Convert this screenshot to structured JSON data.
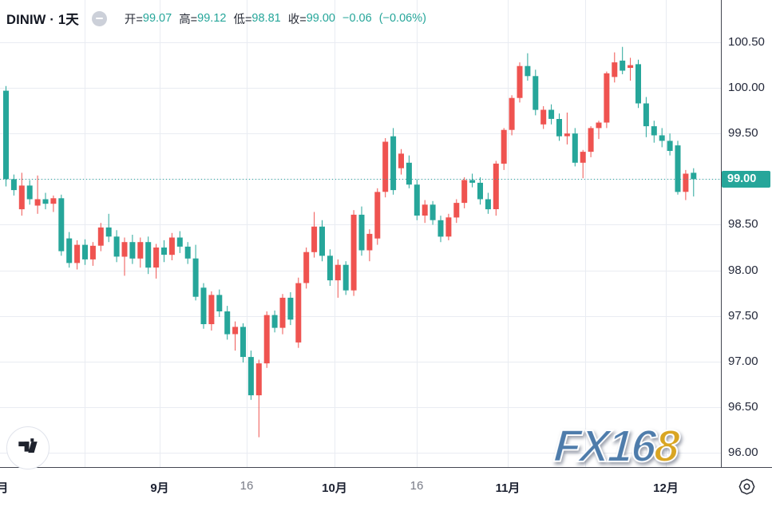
{
  "header": {
    "symbol": "DINIW",
    "separator": "·",
    "interval": "1天",
    "title": "DINIW · 1天",
    "ohlc": {
      "o_label": "开=",
      "o": "99.07",
      "h_label": "高=",
      "h": "99.12",
      "l_label": "低=",
      "l": "98.81",
      "c_label": "收=",
      "c": "99.00",
      "change": "−0.06",
      "change_pct": "(−0.06%)"
    }
  },
  "price_axis": {
    "labels": [
      "100.50",
      "100.00",
      "99.50",
      "99.00",
      "98.50",
      "98.00",
      "97.50",
      "97.00",
      "96.50",
      "96.00"
    ],
    "current_price": "99.00"
  },
  "time_axis": {
    "ticks": [
      {
        "x": 3,
        "label": "月",
        "bold": true
      },
      {
        "x": 200,
        "label": "9月",
        "bold": true
      },
      {
        "x": 309,
        "label": "16",
        "bold": false
      },
      {
        "x": 419,
        "label": "10月",
        "bold": true
      },
      {
        "x": 522,
        "label": "16",
        "bold": false
      },
      {
        "x": 636,
        "label": "11月",
        "bold": true
      },
      {
        "x": 834,
        "label": "12月",
        "bold": true
      }
    ]
  },
  "watermark": {
    "blue_part": "FX16",
    "gold_part": "8"
  },
  "colors": {
    "up": "#ef5350",
    "down": "#26a69a",
    "grid": "#e9ecf2",
    "axis_line": "#434651",
    "text_dark": "#131722",
    "text_muted": "#787b86",
    "badge_bg": "#26a69a",
    "badge_text": "#ffffff",
    "current_line": "#26a69a",
    "logo_blue": "#4e7cab",
    "logo_gold": "#d9a522"
  },
  "chart_data": {
    "type": "candlestick",
    "title": "DINIW daily (US Dollar Index), Chinese color convention: red = up day, green = down day",
    "ylim": [
      95.843,
      100.964
    ],
    "y_gridlines": [
      100.5,
      100.0,
      99.5,
      99.0,
      98.5,
      98.0,
      97.5,
      97.0,
      96.5,
      96.0
    ],
    "x_gridlines": [
      106,
      200,
      309,
      419,
      522,
      636,
      733,
      834
    ],
    "current_price": 99.0,
    "first_candle_x": 7.5,
    "candle_spacing": 9.9,
    "body_width": 7,
    "candles_format": [
      "open",
      "high",
      "low",
      "close"
    ],
    "candles": [
      [
        99.97,
        100.02,
        98.92,
        99.0
      ],
      [
        99.0,
        99.05,
        98.82,
        98.88
      ],
      [
        98.67,
        99.07,
        98.6,
        98.93
      ],
      [
        98.93,
        98.99,
        98.72,
        98.78
      ],
      [
        98.71,
        99.04,
        98.62,
        98.78
      ],
      [
        98.78,
        98.85,
        98.67,
        98.73
      ],
      [
        98.73,
        98.82,
        98.64,
        98.79
      ],
      [
        98.79,
        98.83,
        98.16,
        98.21
      ],
      [
        98.35,
        98.42,
        98.03,
        98.08
      ],
      [
        98.08,
        98.33,
        98.01,
        98.28
      ],
      [
        98.28,
        98.34,
        98.06,
        98.12
      ],
      [
        98.12,
        98.31,
        98.05,
        98.27
      ],
      [
        98.27,
        98.52,
        98.21,
        98.47
      ],
      [
        98.47,
        98.62,
        98.31,
        98.37
      ],
      [
        98.37,
        98.44,
        98.09,
        98.15
      ],
      [
        98.15,
        98.36,
        97.94,
        98.31
      ],
      [
        98.31,
        98.39,
        98.07,
        98.13
      ],
      [
        98.13,
        98.36,
        98.03,
        98.31
      ],
      [
        98.31,
        98.37,
        97.96,
        98.03
      ],
      [
        98.03,
        98.29,
        97.91,
        98.25
      ],
      [
        98.25,
        98.33,
        98.09,
        98.17
      ],
      [
        98.17,
        98.41,
        98.11,
        98.36
      ],
      [
        98.36,
        98.43,
        98.19,
        98.26
      ],
      [
        98.26,
        98.31,
        98.07,
        98.13
      ],
      [
        98.13,
        98.28,
        97.67,
        97.71
      ],
      [
        97.81,
        97.86,
        97.36,
        97.41
      ],
      [
        97.41,
        97.77,
        97.34,
        97.73
      ],
      [
        97.73,
        97.79,
        97.49,
        97.55
      ],
      [
        97.55,
        97.61,
        97.24,
        97.3
      ],
      [
        97.3,
        97.44,
        97.12,
        97.38
      ],
      [
        97.38,
        97.42,
        96.99,
        97.05
      ],
      [
        97.05,
        97.12,
        96.58,
        96.63
      ],
      [
        96.63,
        97.02,
        96.17,
        96.98
      ],
      [
        96.98,
        97.55,
        96.93,
        97.51
      ],
      [
        97.51,
        97.56,
        97.32,
        97.37
      ],
      [
        97.37,
        97.74,
        97.3,
        97.7
      ],
      [
        97.7,
        97.76,
        97.4,
        97.46
      ],
      [
        97.21,
        97.92,
        97.15,
        97.86
      ],
      [
        97.86,
        98.25,
        97.8,
        98.2
      ],
      [
        98.2,
        98.64,
        98.14,
        98.48
      ],
      [
        98.48,
        98.55,
        98.1,
        98.16
      ],
      [
        98.16,
        98.23,
        97.83,
        97.89
      ],
      [
        97.89,
        98.12,
        97.7,
        98.06
      ],
      [
        98.06,
        98.1,
        97.73,
        97.78
      ],
      [
        97.78,
        98.66,
        97.72,
        98.61
      ],
      [
        98.61,
        98.7,
        98.16,
        98.22
      ],
      [
        98.22,
        98.45,
        98.1,
        98.4
      ],
      [
        98.35,
        98.9,
        98.28,
        98.86
      ],
      [
        98.86,
        99.45,
        98.8,
        99.41
      ],
      [
        99.47,
        99.56,
        98.83,
        98.88
      ],
      [
        99.12,
        99.33,
        99.05,
        99.28
      ],
      [
        99.18,
        99.26,
        98.9,
        98.94
      ],
      [
        98.94,
        99.0,
        98.55,
        98.6
      ],
      [
        98.6,
        98.77,
        98.52,
        98.72
      ],
      [
        98.72,
        98.76,
        98.5,
        98.55
      ],
      [
        98.55,
        98.6,
        98.31,
        98.37
      ],
      [
        98.37,
        98.62,
        98.33,
        98.58
      ],
      [
        98.58,
        98.78,
        98.52,
        98.74
      ],
      [
        98.74,
        99.02,
        98.68,
        98.99
      ],
      [
        98.99,
        99.06,
        98.91,
        98.96
      ],
      [
        98.96,
        99.02,
        98.72,
        98.78
      ],
      [
        98.78,
        98.85,
        98.62,
        98.67
      ],
      [
        98.67,
        99.2,
        98.6,
        99.17
      ],
      [
        99.17,
        99.56,
        99.1,
        99.54
      ],
      [
        99.54,
        99.92,
        99.48,
        99.89
      ],
      [
        99.89,
        100.28,
        99.84,
        100.24
      ],
      [
        100.24,
        100.38,
        100.08,
        100.13
      ],
      [
        100.13,
        100.2,
        99.7,
        99.76
      ],
      [
        99.6,
        99.8,
        99.55,
        99.76
      ],
      [
        99.76,
        99.82,
        99.6,
        99.66
      ],
      [
        99.66,
        99.72,
        99.42,
        99.47
      ],
      [
        99.47,
        99.73,
        99.38,
        99.5
      ],
      [
        99.5,
        99.56,
        99.14,
        99.18
      ],
      [
        99.18,
        99.32,
        99.01,
        99.3
      ],
      [
        99.3,
        99.58,
        99.24,
        99.56
      ],
      [
        99.56,
        99.64,
        99.44,
        99.62
      ],
      [
        99.62,
        100.18,
        99.56,
        100.16
      ],
      [
        100.12,
        100.39,
        100.06,
        100.28
      ],
      [
        100.3,
        100.45,
        100.15,
        100.19
      ],
      [
        100.22,
        100.33,
        100.08,
        100.25
      ],
      [
        100.26,
        100.31,
        99.78,
        99.83
      ],
      [
        99.83,
        99.9,
        99.46,
        99.58
      ],
      [
        99.58,
        99.64,
        99.4,
        99.48
      ],
      [
        99.48,
        99.56,
        99.35,
        99.42
      ],
      [
        99.42,
        99.5,
        99.26,
        99.31
      ],
      [
        99.37,
        99.42,
        98.83,
        98.86
      ],
      [
        98.86,
        99.1,
        98.77,
        99.06
      ],
      [
        99.07,
        99.12,
        98.81,
        99.0
      ]
    ]
  }
}
